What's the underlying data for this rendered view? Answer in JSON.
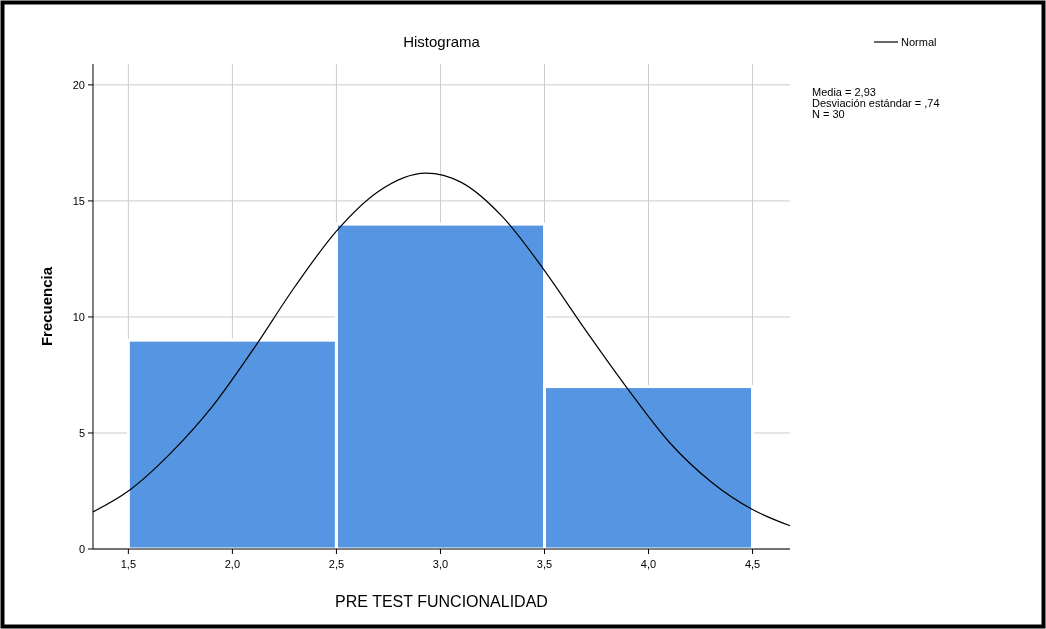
{
  "chart_data": {
    "type": "histogram",
    "title": "Histograma",
    "xlabel": "PRE TEST FUNCIONALIDAD",
    "ylabel": "Frecuencia",
    "bins": [
      1.5,
      2.5,
      3.5,
      4.5
    ],
    "series": [
      {
        "color": "#5595e2",
        "values": [
          9,
          14,
          7
        ]
      },
      {
        "type": "line",
        "name": "Normal",
        "color": "#000000",
        "x": [
          1.33,
          1.5,
          1.7,
          1.9,
          2.1,
          2.3,
          2.5,
          2.7,
          2.93,
          3.1,
          3.3,
          3.5,
          3.7,
          3.9,
          4.1,
          4.3,
          4.5,
          4.68
        ],
        "values": [
          1.6,
          2.5,
          4.1,
          6.1,
          8.6,
          11.3,
          13.7,
          15.4,
          16.2,
          15.8,
          14.3,
          12.0,
          9.4,
          6.9,
          4.6,
          2.9,
          1.7,
          1.0
        ]
      }
    ],
    "xlim": [
      1.33,
      4.68
    ],
    "xticks": [
      {
        "value": 1.5,
        "label": "1,5"
      },
      {
        "value": 2,
        "label": "2,0"
      },
      {
        "value": 2.5,
        "label": "2,5"
      },
      {
        "value": 3,
        "label": "3,0"
      },
      {
        "value": 3.5,
        "label": "3,5"
      },
      {
        "value": 4,
        "label": "4,0"
      },
      {
        "value": 4.5,
        "label": "4,5"
      }
    ],
    "ylim": [
      0,
      20.9
    ],
    "yticks": [
      0,
      5,
      10,
      15,
      20
    ],
    "grid": true,
    "legend": "top right",
    "marker": "none",
    "line_style": "solid",
    "annotations": [
      "Media = 2,93",
      "Desviación estándar = ,74",
      "N = 30"
    ]
  }
}
